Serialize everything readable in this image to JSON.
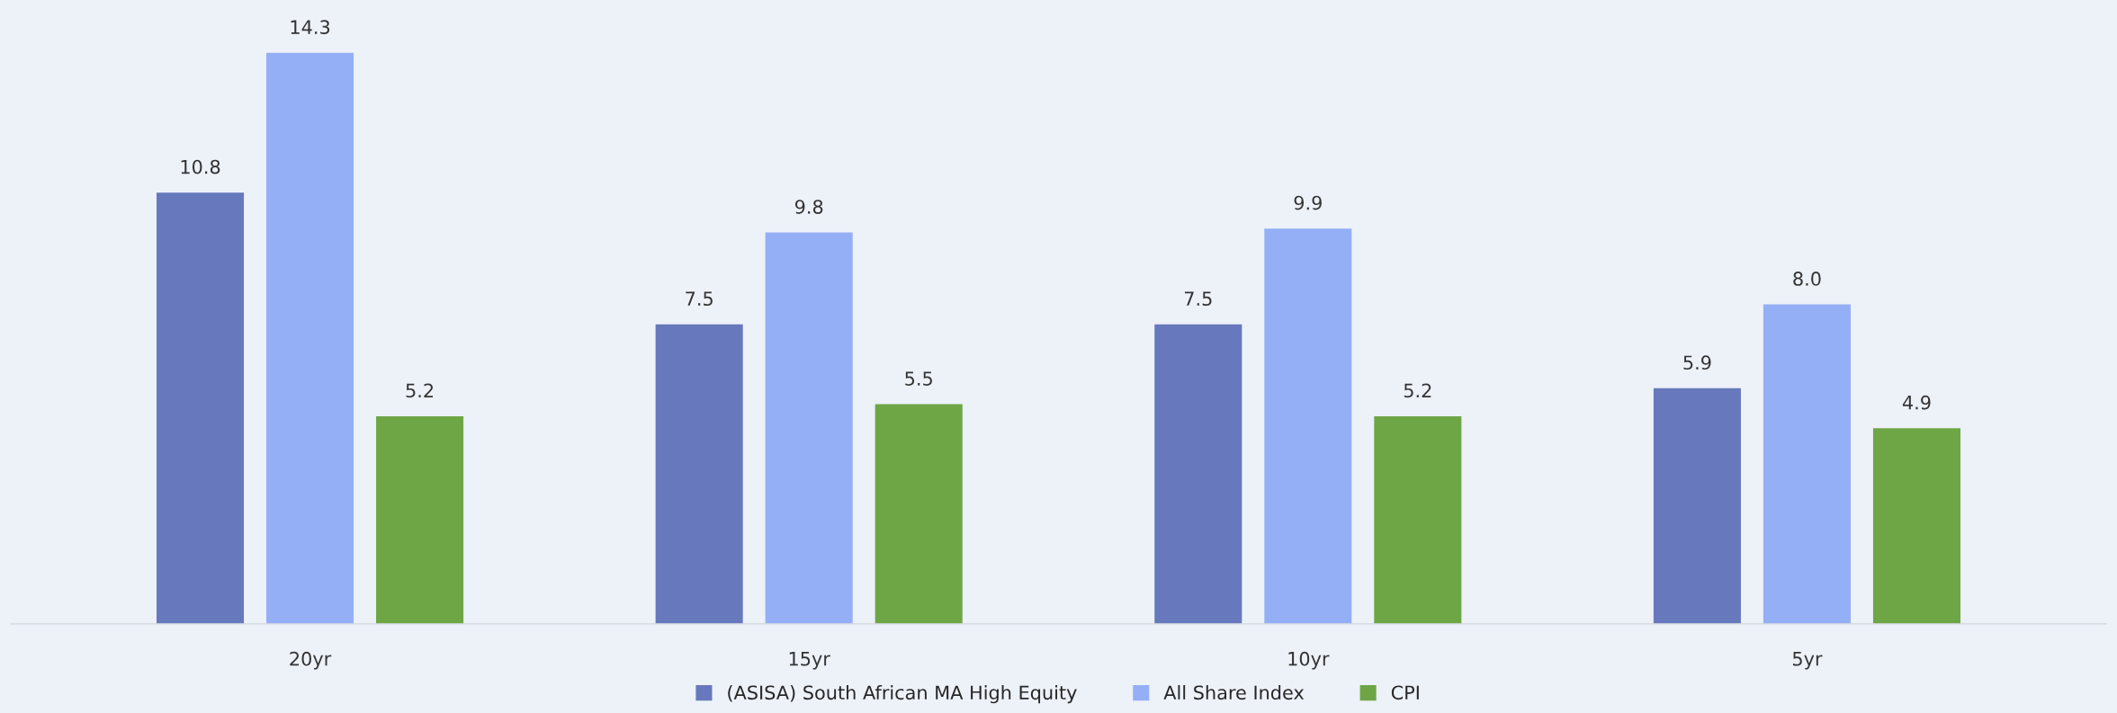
{
  "chart_data": {
    "type": "bar",
    "categories": [
      "20yr",
      "15yr",
      "10yr",
      "5yr"
    ],
    "series": [
      {
        "name": "(ASISA) South African MA High Equity",
        "color": "#6779bc",
        "values": [
          10.8,
          7.5,
          7.5,
          5.9
        ],
        "value_labels": [
          "10.8",
          "7.5",
          "7.5",
          "5.9"
        ]
      },
      {
        "name": "All Share Index",
        "color": "#94aff5",
        "values": [
          14.3,
          9.8,
          9.9,
          8.0
        ],
        "value_labels": [
          "14.3",
          "9.8",
          "9.9",
          "8.0"
        ]
      },
      {
        "name": "CPI",
        "color": "#6ea646",
        "values": [
          5.2,
          5.5,
          5.2,
          4.9
        ],
        "value_labels": [
          "5.2",
          "5.5",
          "5.2",
          "4.9"
        ]
      }
    ],
    "legend": "bottom",
    "grid": false,
    "tick_labels": "x"
  }
}
